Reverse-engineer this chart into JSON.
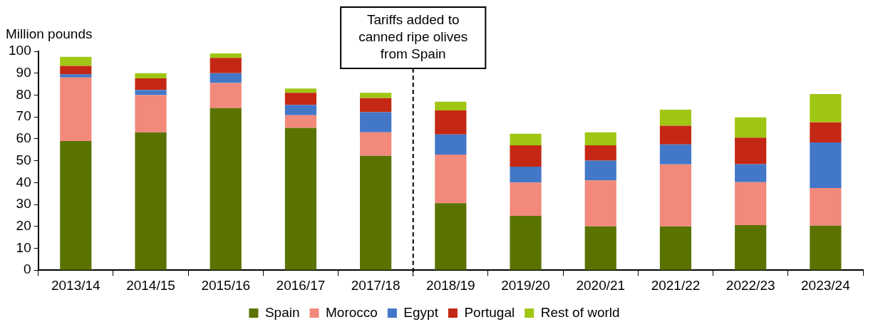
{
  "chart_data": {
    "type": "bar",
    "stacked": true,
    "ylabel": "Million pounds",
    "categories": [
      "2013/14",
      "2014/15",
      "2015/16",
      "2016/17",
      "2017/18",
      "2018/19",
      "2019/20",
      "2020/21",
      "2021/22",
      "2022/23",
      "2023/24"
    ],
    "series": [
      {
        "name": "Spain",
        "color": "#5a7300",
        "values": [
          59,
          63,
          74,
          65,
          52.2,
          30.6,
          24.8,
          20,
          20,
          20.6,
          20.3
        ]
      },
      {
        "name": "Morocco",
        "color": "#f2897b",
        "values": [
          29,
          17,
          11.5,
          5.8,
          10.8,
          22.2,
          15.2,
          21,
          28.3,
          19.6,
          17.2
        ]
      },
      {
        "name": "Egypt",
        "color": "#4377c8",
        "values": [
          1.5,
          2.3,
          4.5,
          4.7,
          9.2,
          9.2,
          7.3,
          9,
          9.1,
          8.2,
          20.8
        ]
      },
      {
        "name": "Portugal",
        "color": "#c42814",
        "values": [
          3.8,
          5.3,
          7,
          5.5,
          6.4,
          11,
          9.7,
          7,
          8.6,
          12.1,
          9.2
        ]
      },
      {
        "name": "Rest of world",
        "color": "#a0c614",
        "values": [
          4.2,
          2.4,
          2,
          2,
          2.4,
          4,
          5.3,
          6,
          7.3,
          9.3,
          13
        ]
      }
    ],
    "ylim": [
      0,
      100
    ],
    "yticks": [
      0,
      10,
      20,
      30,
      40,
      50,
      60,
      70,
      80,
      90,
      100
    ],
    "grid": false,
    "legend": "bottom",
    "annotations": [
      "Tariffs added to canned ripe olives from Spain"
    ]
  }
}
